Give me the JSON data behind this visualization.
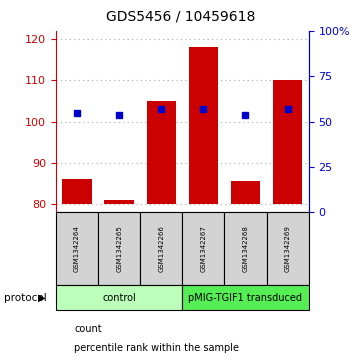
{
  "title": "GDS5456 / 10459618",
  "samples": [
    "GSM1342264",
    "GSM1342265",
    "GSM1342266",
    "GSM1342267",
    "GSM1342268",
    "GSM1342269"
  ],
  "bar_bottom": 80,
  "bar_tops": [
    86.0,
    81.0,
    105.0,
    118.0,
    85.5,
    110.0
  ],
  "blue_y_left": [
    102.0,
    101.5,
    103.0,
    103.0,
    101.5,
    103.0
  ],
  "ylim_left": [
    78,
    122
  ],
  "ylim_right": [
    0,
    100
  ],
  "left_yticks": [
    80,
    90,
    100,
    110,
    120
  ],
  "right_yticks": [
    0,
    25,
    50,
    75,
    100
  ],
  "right_yticklabels": [
    "0",
    "25",
    "50",
    "75",
    "100%"
  ],
  "bar_color": "#cc0000",
  "blue_color": "#0000cc",
  "grid_color": "#aaaaaa",
  "protocol_groups": [
    {
      "label": "control",
      "indices": [
        0,
        1,
        2
      ],
      "color": "#bbffbb"
    },
    {
      "label": "pMIG-TGIF1 transduced",
      "indices": [
        3,
        4,
        5
      ],
      "color": "#55ee55"
    }
  ],
  "protocol_label": "protocol",
  "legend_items": [
    {
      "color": "#cc0000",
      "label": "count"
    },
    {
      "color": "#0000cc",
      "label": "percentile rank within the sample"
    }
  ],
  "left_axis_color": "#cc0000",
  "right_axis_color": "#0000cc",
  "bar_width": 0.7,
  "title_fontsize": 10,
  "tick_fontsize": 8,
  "sample_fontsize": 5,
  "legend_fontsize": 7,
  "prot_fontsize": 7
}
